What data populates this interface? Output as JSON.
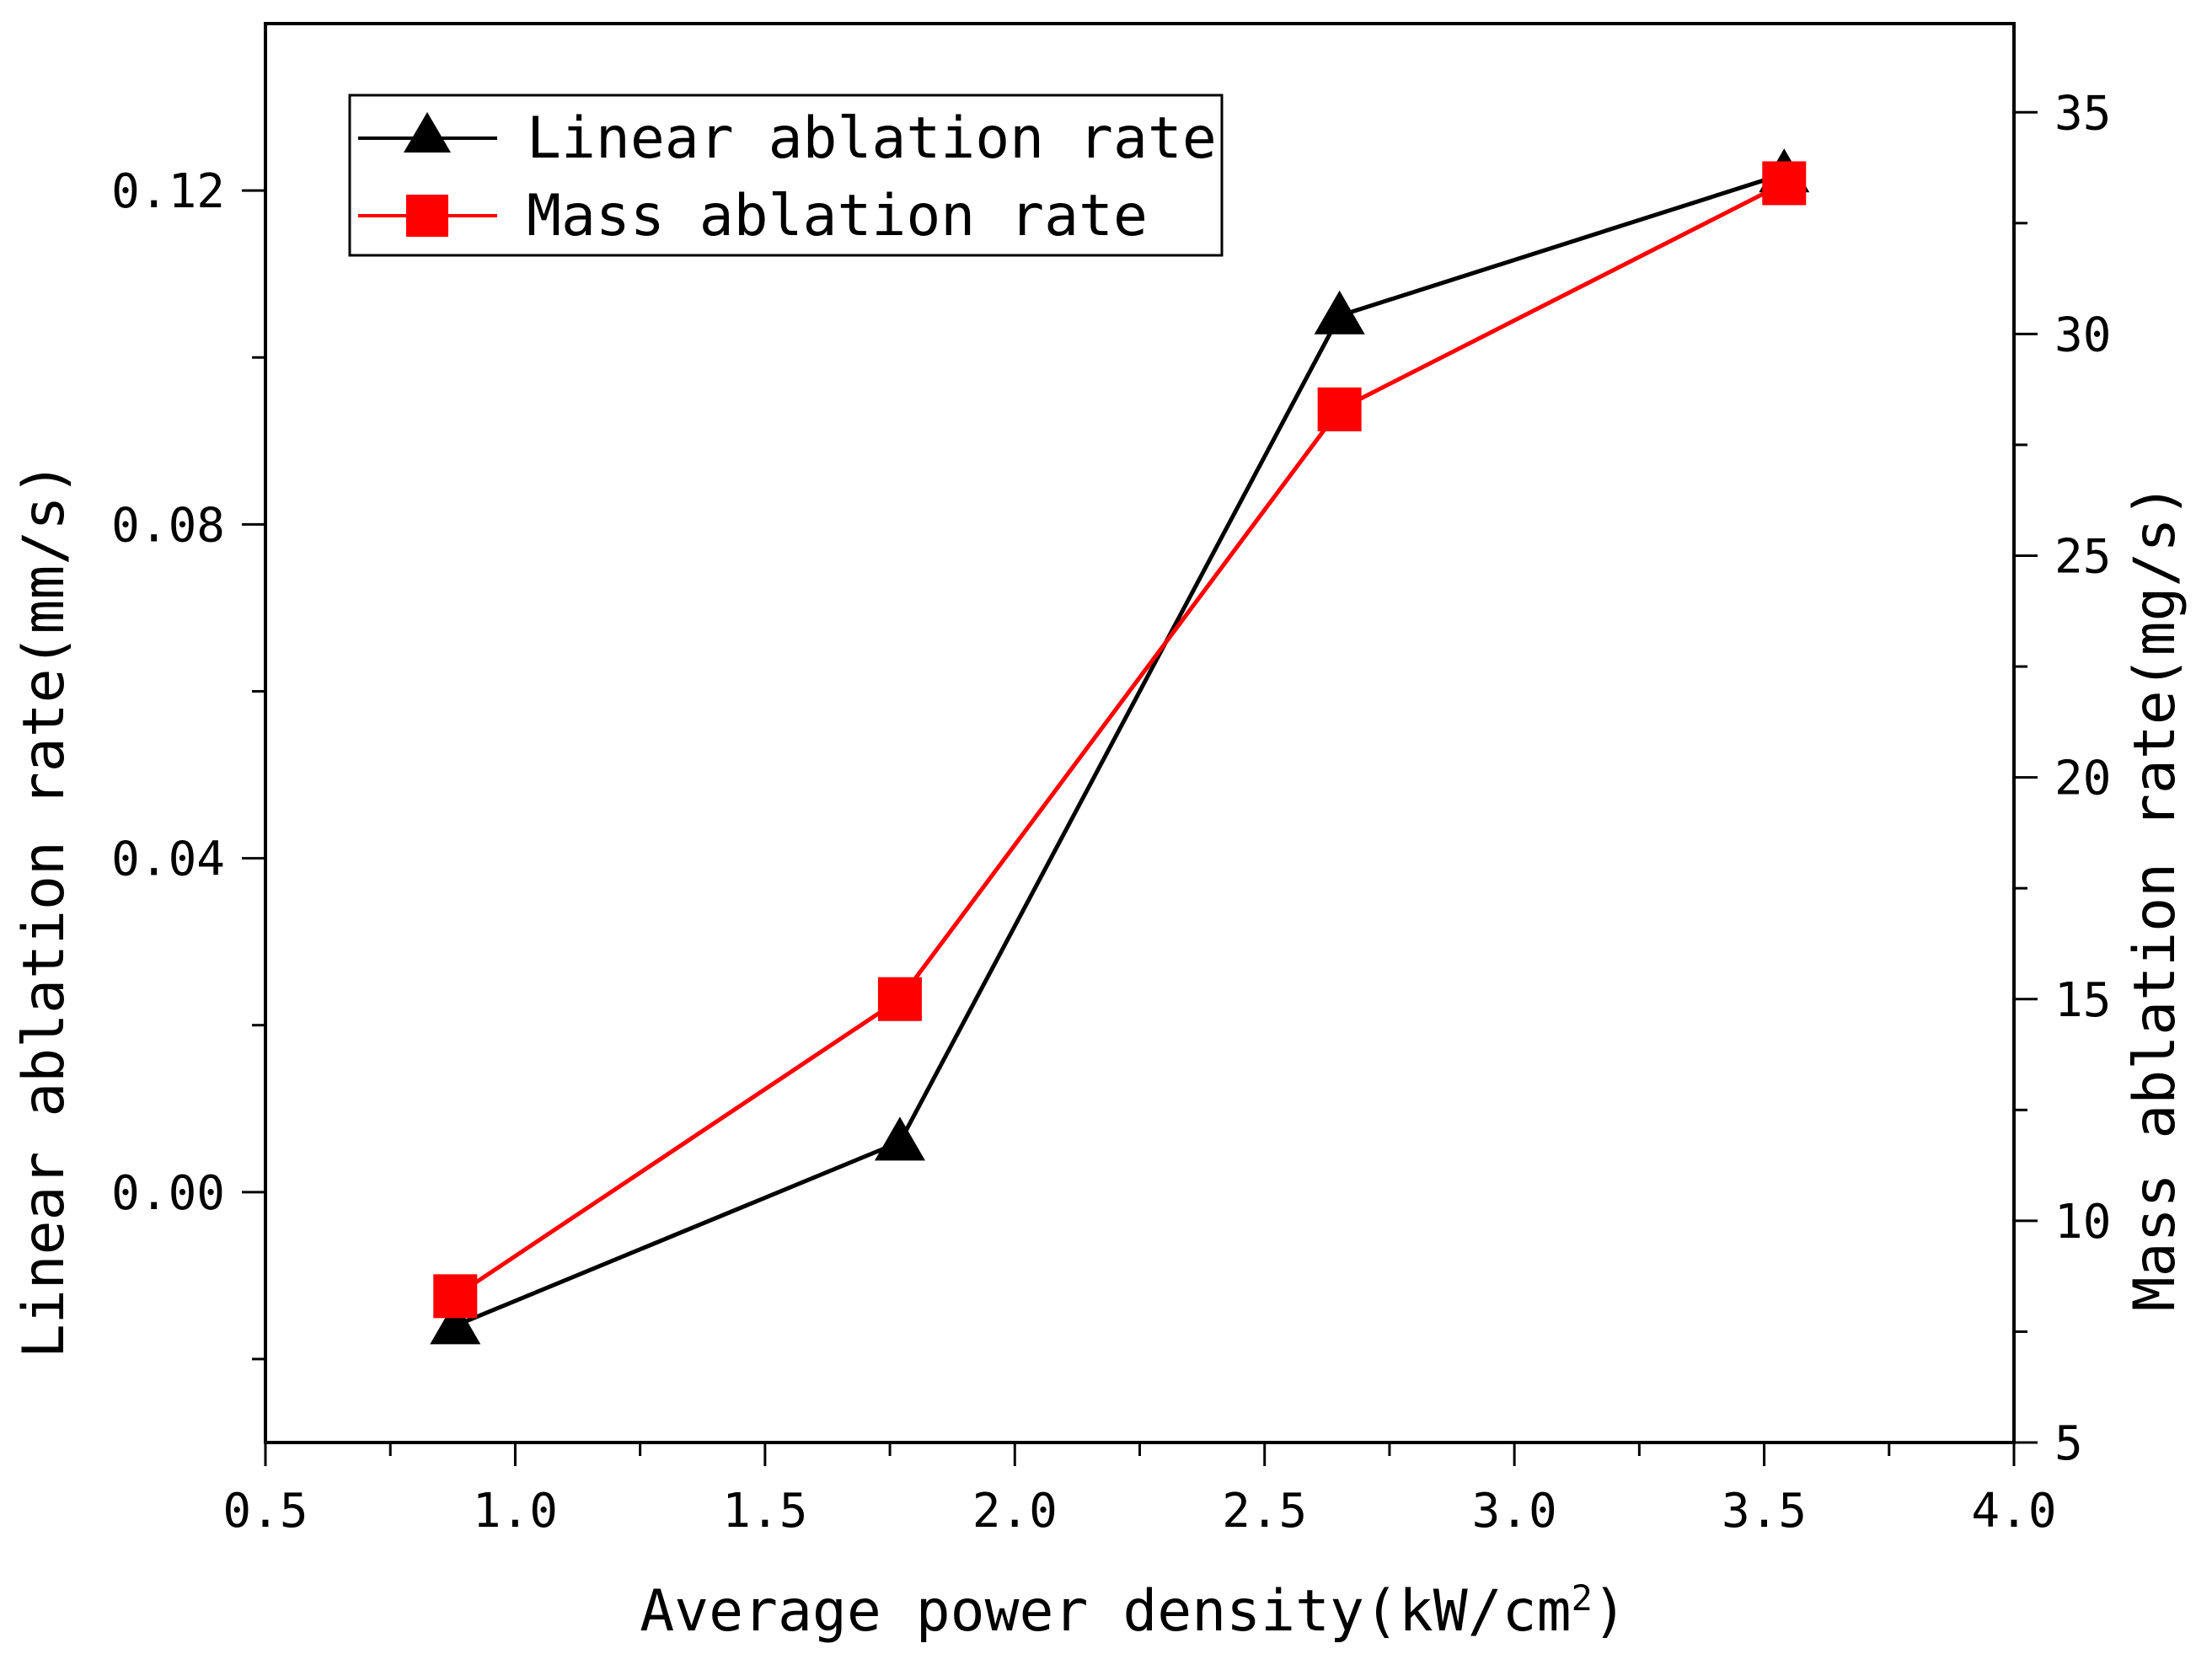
{
  "chart_data": {
    "type": "line",
    "xlabel": "Average power density(kW/cm",
    "xlabel_sup": "2",
    "xlabel_end": ")",
    "ylabel_left": "Linear ablation rate(mm/s)",
    "ylabel_right": "Mass ablation rate(mg/s)",
    "xlim": [
      0.5,
      4.0
    ],
    "ylim_left": [
      -0.03,
      0.14
    ],
    "ylim_right": [
      5,
      37
    ],
    "x_ticks": [
      "0.5",
      "1.0",
      "1.5",
      "2.0",
      "2.5",
      "3.0",
      "3.5",
      "4.0"
    ],
    "y_left_ticks": [
      "0.00",
      "0.04",
      "0.08",
      "0.12"
    ],
    "y_right_ticks": [
      "5",
      "10",
      "15",
      "20",
      "25",
      "30",
      "35"
    ],
    "legend_position": "top-left",
    "grid": false,
    "series": [
      {
        "name": "Linear ablation rate",
        "axis": "left",
        "color": "#000000",
        "marker": "triangle",
        "x": [
          0.88,
          1.77,
          2.65,
          3.54
        ],
        "y": [
          -0.016,
          0.006,
          0.105,
          0.122
        ]
      },
      {
        "name": "Mass ablation rate",
        "axis": "right",
        "color": "#ff0000",
        "marker": "square",
        "x": [
          0.88,
          1.77,
          2.65,
          3.54
        ],
        "y": [
          8.3,
          15.0,
          28.3,
          33.4
        ]
      }
    ]
  }
}
